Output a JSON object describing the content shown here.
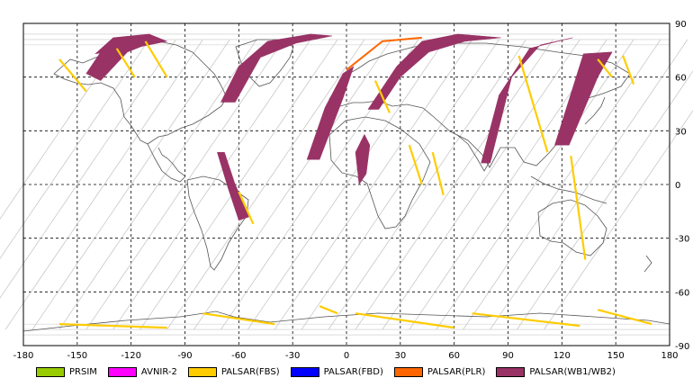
{
  "map": {
    "lon_range": [
      -180,
      180
    ],
    "lat_range": [
      -90,
      90
    ],
    "lon_ticks": [
      "-180",
      "-150",
      "-120",
      "-90",
      "-60",
      "-30",
      "0",
      "30",
      "60",
      "90",
      "120",
      "150",
      "180"
    ],
    "lat_ticks": [
      "90",
      "60",
      "30",
      "0",
      "-30",
      "-60",
      "-90"
    ],
    "grid": "dashed",
    "orbit_track_color": "#c8c8c8",
    "coastline_color": "#555555"
  },
  "legend": [
    {
      "label": "PRSIM",
      "color": "#99cc00"
    },
    {
      "label": "AVNIR-2",
      "color": "#ff00ff"
    },
    {
      "label": "PALSAR(FBS)",
      "color": "#ffcc00"
    },
    {
      "label": "PALSAR(FBD)",
      "color": "#0000ff"
    },
    {
      "label": "PALSAR(PLR)",
      "color": "#ff6600"
    },
    {
      "label": "PALSAR(WB1/WB2)",
      "color": "#993366"
    }
  ],
  "coverage": {
    "wb_swaths": [
      [
        [
          -145,
          62
        ],
        [
          -135,
          77
        ],
        [
          -118,
          82
        ],
        [
          -112,
          78
        ],
        [
          -122,
          74
        ],
        [
          -137,
          58
        ]
      ],
      [
        [
          -70,
          46
        ],
        [
          -60,
          66
        ],
        [
          -44,
          80
        ],
        [
          -20,
          84
        ],
        [
          -8,
          83
        ],
        [
          -28,
          79
        ],
        [
          -48,
          71
        ],
        [
          -62,
          46
        ]
      ],
      [
        [
          -22,
          14
        ],
        [
          -12,
          43
        ],
        [
          -2,
          62
        ],
        [
          4,
          66
        ],
        [
          -2,
          48
        ],
        [
          -15,
          14
        ]
      ],
      [
        [
          12,
          42
        ],
        [
          28,
          66
        ],
        [
          42,
          80
        ],
        [
          62,
          84
        ],
        [
          86,
          82
        ],
        [
          66,
          80
        ],
        [
          46,
          74
        ],
        [
          30,
          60
        ],
        [
          18,
          42
        ]
      ],
      [
        [
          75,
          12
        ],
        [
          85,
          50
        ],
        [
          102,
          76
        ],
        [
          126,
          82
        ],
        [
          108,
          78
        ],
        [
          92,
          60
        ],
        [
          80,
          12
        ]
      ],
      [
        [
          116,
          22
        ],
        [
          132,
          73
        ],
        [
          148,
          74
        ],
        [
          140,
          60
        ],
        [
          124,
          22
        ]
      ],
      [
        [
          -140,
          73
        ],
        [
          -130,
          82
        ],
        [
          -110,
          84
        ],
        [
          -100,
          80
        ],
        [
          -115,
          77
        ]
      ],
      [
        [
          -72,
          18
        ],
        [
          -66,
          -2
        ],
        [
          -60,
          -20
        ],
        [
          -54,
          -18
        ],
        [
          -62,
          0
        ],
        [
          -68,
          18
        ]
      ],
      [
        [
          5,
          18
        ],
        [
          7,
          0
        ],
        [
          11,
          6
        ],
        [
          13,
          22
        ],
        [
          10,
          28
        ]
      ]
    ],
    "fbs_tracks": [
      [
        [
          -160,
          70
        ],
        [
          -145,
          52
        ]
      ],
      [
        [
          -128,
          76
        ],
        [
          -118,
          60
        ]
      ],
      [
        [
          -112,
          80
        ],
        [
          -100,
          60
        ]
      ],
      [
        [
          -60,
          -4
        ],
        [
          -52,
          -22
        ]
      ],
      [
        [
          16,
          58
        ],
        [
          24,
          40
        ]
      ],
      [
        [
          35,
          22
        ],
        [
          42,
          0
        ]
      ],
      [
        [
          48,
          18
        ],
        [
          54,
          -6
        ]
      ],
      [
        [
          96,
          72
        ],
        [
          112,
          18
        ]
      ],
      [
        [
          125,
          16
        ],
        [
          133,
          -42
        ]
      ],
      [
        [
          140,
          70
        ],
        [
          148,
          60
        ]
      ],
      [
        [
          154,
          72
        ],
        [
          160,
          56
        ]
      ],
      [
        [
          -160,
          -78
        ],
        [
          -100,
          -80
        ]
      ],
      [
        [
          -80,
          -72
        ],
        [
          -40,
          -78
        ]
      ],
      [
        [
          5,
          -72
        ],
        [
          60,
          -80
        ]
      ],
      [
        [
          70,
          -72
        ],
        [
          130,
          -79
        ]
      ],
      [
        [
          140,
          -70
        ],
        [
          170,
          -78
        ]
      ],
      [
        [
          -15,
          -68
        ],
        [
          -5,
          -72
        ]
      ]
    ],
    "plr_tracks": [
      [
        [
          0,
          64
        ],
        [
          20,
          80
        ],
        [
          42,
          82
        ]
      ]
    ]
  }
}
